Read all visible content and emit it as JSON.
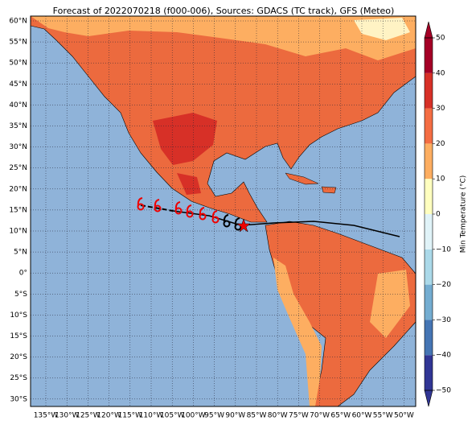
{
  "title": "Forecast of 2022070218 (f000-006), Sources: GDACS (TC track), GFS (Meteo)",
  "axes": {
    "lat_labels": [
      "60°N",
      "55°N",
      "50°N",
      "45°N",
      "40°N",
      "35°N",
      "30°N",
      "25°N",
      "20°N",
      "15°N",
      "10°N",
      "5°N",
      "0°",
      "5°S",
      "10°S",
      "15°S",
      "20°S",
      "25°S",
      "30°S"
    ],
    "lon_labels": [
      "135°W",
      "130°W",
      "125°W",
      "120°W",
      "115°W",
      "110°W",
      "105°W",
      "100°W",
      "95°W",
      "90°W",
      "85°W",
      "80°W",
      "75°W",
      "70°W",
      "65°W",
      "60°W",
      "55°W",
      "50°W"
    ]
  },
  "colorbar": {
    "label": "Min Temperature (°C)",
    "lim": [
      -50,
      50
    ],
    "ticks": [
      50,
      40,
      30,
      20,
      10,
      0,
      {
        "value": -10,
        "label": "−10"
      },
      {
        "value": -20,
        "label": "−20"
      },
      {
        "value": -30,
        "label": "−30"
      },
      {
        "value": -40,
        "label": "−40"
      },
      {
        "value": -50,
        "label": "−50"
      }
    ],
    "colors": [
      "#313695",
      "#4575b4",
      "#74add1",
      "#abd9e9",
      "#e0f3f8",
      "#ffffbf",
      "#fdae61",
      "#f46d43",
      "#d73027",
      "#a50026"
    ]
  }
}
